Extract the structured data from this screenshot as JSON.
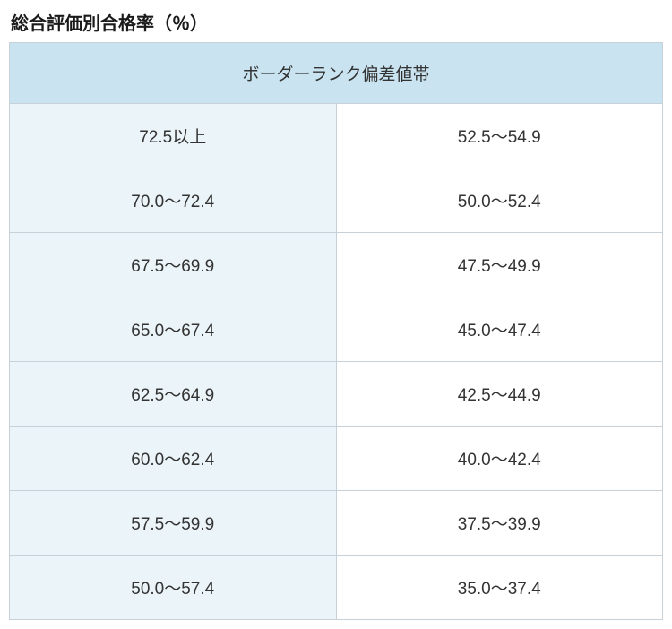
{
  "title": "総合評価別合格率（％）",
  "table": {
    "header": "ボーダーランク偏差値帯",
    "rows": [
      {
        "left": "72.5以上",
        "right": "52.5～54.9"
      },
      {
        "left": "70.0～72.4",
        "right": "50.0～52.4"
      },
      {
        "left": "67.5～69.9",
        "right": "47.5～49.9"
      },
      {
        "left": "65.0～67.4",
        "right": "45.0～47.4"
      },
      {
        "left": "62.5～64.9",
        "right": "42.5～44.9"
      },
      {
        "left": "60.0～62.4",
        "right": "40.0～42.4"
      },
      {
        "left": "57.5～59.9",
        "right": "37.5～39.9"
      },
      {
        "left": "50.0～57.4",
        "right": "35.0～37.4"
      }
    ],
    "colors": {
      "header_bg": "#c9e4f0",
      "left_col_bg": "#ebf4f8",
      "right_col_bg": "#ffffff",
      "border": "#c8d0d8",
      "text": "#333333",
      "title_text": "#1a1a1a"
    },
    "font_size_title": 20,
    "font_size_cells": 19
  }
}
